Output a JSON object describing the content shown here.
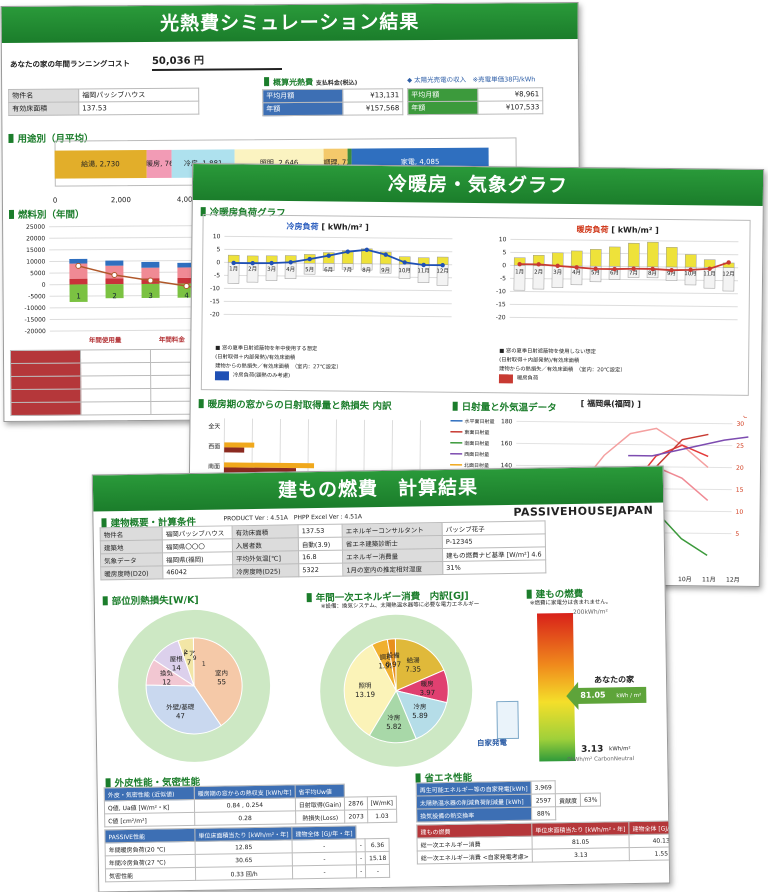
{
  "s1": {
    "title": "光熱費シミュレーション結果",
    "annual_cost_label": "あなたの家の年間ランニングコスト",
    "annual_cost_value": "50,036 円",
    "prop_label": "物件名",
    "prop_value": "福岡パッシブハウス",
    "area_label": "有効床面積",
    "area_value": "137.53",
    "summary_title": "概算光熱費",
    "summary_sub": "支払料金(税込)",
    "monthly_label": "平均月額",
    "monthly_value": "¥13,131",
    "yearly_label": "年額",
    "yearly_value": "¥157,568",
    "solar_title": "◆ 太陽光売電の収入",
    "solar_note": "※売電単価38円/kWh",
    "solar_monthly": "¥8,961",
    "solar_yearly": "¥107,533",
    "usage_title": "用途別（月平均）",
    "usage": [
      {
        "label": "給湯, 2,730",
        "v": 2730,
        "color": "#e2ae2a"
      },
      {
        "label": "暖房, 762",
        "v": 762,
        "color": "#f29bb5"
      },
      {
        "label": "冷房, 1,881",
        "v": 1881,
        "color": "#aee1ee"
      },
      {
        "label": "照明, 2,646",
        "v": 2646,
        "color": "#fbf3c1"
      },
      {
        "label": "調理, 723",
        "v": 723,
        "color": "#f4c96b"
      },
      {
        "label": "",
        "v": 120,
        "color": "#3d8c3d"
      },
      {
        "label": "家電, 4,085",
        "v": 4085,
        "color": "#2f6fbf"
      }
    ],
    "usage_ticks": [
      "0",
      "2,000",
      "4,000"
    ],
    "fuel_title": "燃料別（年間）",
    "fuel_ticks": [
      "25000",
      "20000",
      "15000",
      "10000",
      "5000",
      "0",
      "-5000",
      "-10000",
      "-15000",
      "-20000"
    ],
    "fuel_cats": [
      "1",
      "2",
      "3",
      "4"
    ],
    "fuel_head_use": "年間使用量",
    "fuel_head_cost": "年間料金",
    "fuel_rows": [
      {
        "name": "電気(kWh)",
        "use": "5477.5",
        "cost": "¥116,13"
      },
      {
        "name": "ガス(m³)",
        "use": "187.7",
        "cost": "¥41,43"
      },
      {
        "name": "灯油(Liter)",
        "use": "0.0",
        "cost": "¥0"
      },
      {
        "name": "薪(Kg)",
        "use": "0.0",
        "cost": "¥0"
      },
      {
        "name": "ペレット(Kg)",
        "use": "0.0",
        "cost": "¥0"
      }
    ]
  },
  "s2": {
    "title": "冷暖房・気象グラフ",
    "load_title": "冷暖房負荷グラフ",
    "cool_title": "冷房負荷",
    "heat_title": "暖房負荷",
    "unit": "[ kWh/m² ]",
    "yticks": [
      "10",
      "5",
      "0",
      "-5",
      "-10",
      "-15",
      "-20"
    ],
    "months": [
      "1月",
      "2月",
      "3月",
      "4月",
      "5月",
      "6月",
      "7月",
      "8月",
      "9月",
      "10月",
      "11月",
      "12月"
    ],
    "cool": {
      "pos": [
        2.8,
        2.6,
        2.7,
        2.9,
        3.4,
        4.2,
        5.0,
        5.8,
        4.6,
        2.9,
        2.6,
        2.9
      ],
      "neg": [
        -8.0,
        -7.5,
        -6.8,
        -6.0,
        -4.2,
        -2.8,
        -2.2,
        -2.4,
        -3.5,
        -5.5,
        -7.0,
        -8.0
      ],
      "line": [
        -0.2,
        -0.2,
        -0.1,
        0.3,
        1.6,
        3.0,
        4.6,
        5.4,
        3.6,
        0.7,
        -0.2,
        -0.2
      ]
    },
    "heat": {
      "pos": [
        3.0,
        4.0,
        5.0,
        5.8,
        6.5,
        7.5,
        9.0,
        9.5,
        7.6,
        4.9,
        3.0,
        1.8
      ],
      "neg": [
        -9.5,
        -9.0,
        -8.4,
        -7.2,
        -6.0,
        -5.0,
        -4.2,
        -4.2,
        -5.2,
        -6.8,
        -8.0,
        -9.0
      ],
      "line": [
        0.5,
        0.5,
        0,
        -0.5,
        -1.0,
        -1.0,
        -0.8,
        -0.8,
        -1.2,
        -1.0,
        -0.5,
        2.0
      ]
    },
    "cool_leg": [
      "■ 窓の夏季日射遮蔽物を年中使用する想定",
      "(日射取得＋内部発熱)/有効床面積",
      "建物からの熱損失／有効床面積　（室内：27℃設定）",
      "冷房負荷(顕熱のみ考慮)"
    ],
    "heat_leg": [
      "■ 窓の夏季日射遮蔽物を使用しない想定",
      "(日射取得＋内部発熱)/有効床面積",
      "建物からの熱損失／有効床面積　（室内：20℃設定）",
      "暖房負荷"
    ],
    "solar_title": "暖房期の窓からの日射取得量と熱損失 内訳",
    "dirs": [
      "全天",
      "西面",
      "南面",
      "東面"
    ],
    "weather_title": "日射量と外気温データ",
    "location": "[ 福岡県(福岡) ]",
    "w_left": [
      "180",
      "160",
      "140",
      "120",
      "100",
      "80"
    ],
    "w_right": [
      "30",
      "25",
      "20",
      "15",
      "10",
      "5"
    ],
    "w_leg": [
      "水平面日射量",
      "東面日射量",
      "南面日射量",
      "西面日射量",
      "北面日射量",
      "外気温"
    ],
    "w_months": [
      "10月",
      "11月",
      "12月"
    ],
    "deg": "℃"
  },
  "s3": {
    "title": "建もの燃費　計算結果",
    "cond_title": "建物概要・計算条件",
    "product": "PRODUCT Ver : 4.51A　PHPP Excel Ver : 4.51A",
    "logo": "PASSIVEHOUSEJAPAN",
    "rows": [
      [
        "物件名",
        "福岡パッシブハウス",
        "有効床面積",
        "137.53",
        "エネルギーコンサルタント",
        "パッシブ花子"
      ],
      [
        "建築地",
        "福岡県〇〇〇",
        "入居者数",
        "自動(3.9)",
        "省エネ建築診断士",
        "P-12345"
      ],
      [
        "気象データ",
        "福岡県(福岡)",
        "平均外気温[℃]",
        "16.8",
        "エネルギー消費量",
        "建もの燃費ナビ基準 [W/m²]  4.6"
      ],
      [
        "暖房度時(D20)",
        "46042",
        "冷房度時(D25)",
        "5322",
        "1月の室内の推定相対湿度",
        "31%"
      ]
    ],
    "row3_label": "建もの燃費ナビ基準 [W/m²]",
    "row3_val": "4.6",
    "loss_title": "部位別熱損失[W/K]",
    "loss": [
      {
        "label": "室内",
        "v": 55,
        "color": "#f5c9a8"
      },
      {
        "label": "外壁/基礎",
        "v": 47,
        "color": "#c9d8ef"
      },
      {
        "label": "換気",
        "v": 12,
        "color": "#f2c7d2"
      },
      {
        "label": "屋根",
        "v": 14,
        "color": "#dcd0ec"
      },
      {
        "label": "ドア",
        "v": 7,
        "color": "#f2e6a6"
      },
      {
        "label": "窓",
        "v": 0,
        "color": "#fff"
      }
    ],
    "loss_extra": [
      "2",
      "9",
      "1"
    ],
    "energy_title": "年間一次エネルギー消費　内訳[GJ]",
    "energy_note": "※設備：換気システム、太陽熱温水器等に必要な電力エネルギー",
    "energy": [
      {
        "label": "給湯",
        "v": 7.35,
        "color": "#e0b93a"
      },
      {
        "label": "暖房",
        "v": 3.97,
        "color": "#e04070"
      },
      {
        "label": "冷房",
        "v": 5.89,
        "color": "#b5dde8"
      },
      {
        "label": "冷房",
        "v": 5.82,
        "color": "#a8d8a8"
      },
      {
        "label": "照明",
        "v": 13.19,
        "color": "#fbf3b8"
      },
      {
        "label": "調理",
        "v": 1.95,
        "color": "#f0b030"
      },
      {
        "label": "設備",
        "v": 0.97,
        "color": "#e8901c"
      }
    ],
    "meter_title": "建もの燃費",
    "meter_note": "※燃費に家電分は含まれません。",
    "meter_top": "200kWh/m²",
    "your_house": "あなたの家",
    "your_val": "81.05",
    "your_unit": "kWh / m²",
    "self_gen": "自家発電",
    "bottom_val": "3.13",
    "bottom_unit": "kWh/m²",
    "bottom_label": "0kWh/m² CarbonNeutral",
    "skin_title": "外皮性能・気密性能",
    "skin_h": [
      "外皮・気密性能 (近似値)",
      "暖房期の窓からの熱収支 [kWh/年]",
      "省平均Uw値"
    ],
    "skin": [
      [
        "Q値, Ua値 [W/m²・K]",
        "0.84 , 0.254",
        "日射取得(Gain)",
        "2876",
        "[W/mK]"
      ],
      [
        "C値 [cm²/m²]",
        "0.28",
        "熱損失(Loss)",
        "2073",
        "1.03"
      ]
    ],
    "ph_h": [
      "PASSIVE性能",
      "単位床面積当たり [kWh/m²・年]",
      "建物全体 [GJ/年・年]"
    ],
    "ph": [
      [
        "年間暖房負荷(20 ℃)",
        "12.85",
        "-",
        "-",
        "6.36"
      ],
      [
        "年間冷房負荷(27 ℃)",
        "30.65",
        "-",
        "-",
        "15.18"
      ],
      [
        "気密性能",
        "0.33 回/h",
        "-",
        "-",
        "-"
      ]
    ],
    "eco_title": "省エネ性能",
    "eco": [
      [
        "再生可能エネルギー等の自家発電[kWh]",
        "3,969"
      ],
      [
        "太陽熱温水器の削減負荷削減量 [kWh]",
        "2597",
        "貢献度",
        "63%"
      ],
      [
        "換気設備の熱交換率",
        "88%"
      ]
    ],
    "fuel_h": [
      "建もの燃費",
      "単位床面積当たり [kWh/m²・年]",
      "建物全体 [GJ/年・年]"
    ],
    "fuel": [
      [
        "総一次エネルギー消費",
        "81.05",
        "40.13"
      ],
      [
        "総一次エネルギー消費 <自家発電考慮>",
        "3.13",
        "1.55"
      ]
    ]
  }
}
